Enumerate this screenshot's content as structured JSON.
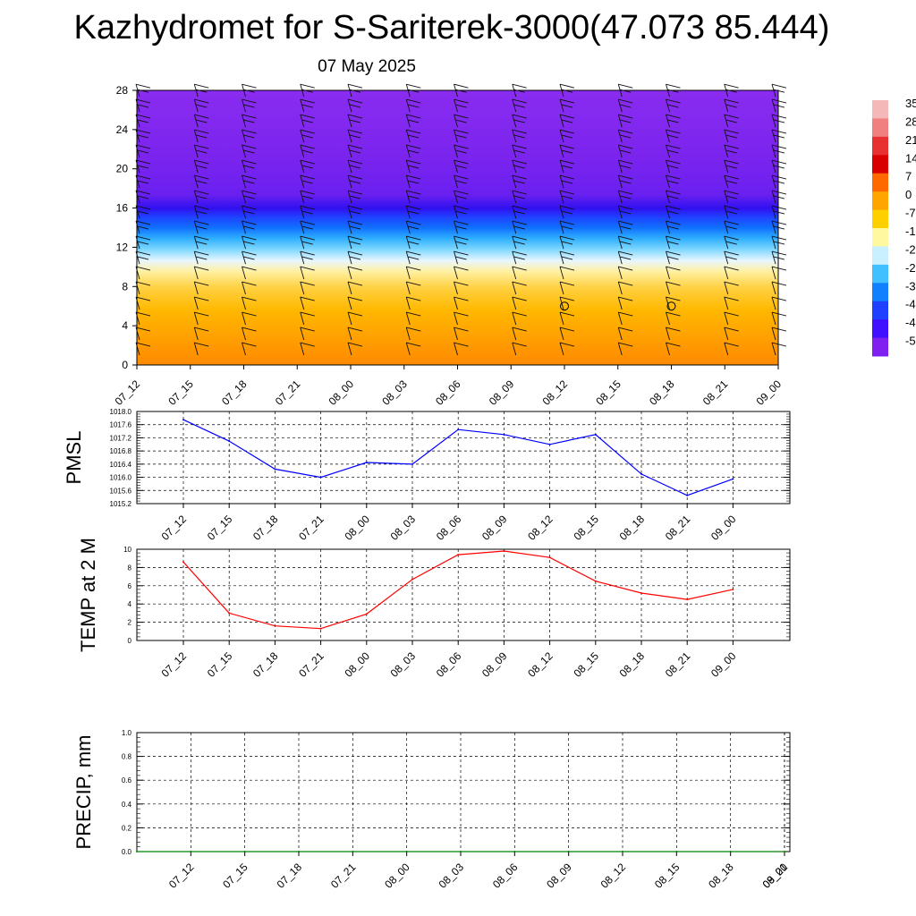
{
  "title": "Kazhydromet for S-Sariterek-3000(47.073 85.444)",
  "subtitle": "07 May 2025",
  "time_labels": [
    "07_12",
    "07_15",
    "07_18",
    "07_21",
    "08_00",
    "08_03",
    "08_06",
    "08_09",
    "08_12",
    "08_15",
    "08_18",
    "08_21",
    "09_00"
  ],
  "chart_data": [
    {
      "type": "heatmap",
      "name": "temperature-wind-cross-section",
      "xlabel": "",
      "ylabel": "",
      "x": [
        "07_12",
        "07_15",
        "07_18",
        "07_21",
        "08_00",
        "08_03",
        "08_06",
        "08_09",
        "08_12",
        "08_15",
        "08_18",
        "08_21",
        "09_00"
      ],
      "ylim": [
        0,
        28
      ],
      "yticks": [
        "0",
        "4",
        "8",
        "12",
        "16",
        "20",
        "24",
        "28"
      ],
      "colorbar_labels": [
        "35",
        "28",
        "21",
        "14",
        "7",
        "0",
        "-7",
        "-1",
        "-2",
        "-2",
        "-3",
        "-4",
        "-4",
        "-5"
      ],
      "colorbar_colors": [
        "#f4b8b8",
        "#f08080",
        "#e83030",
        "#d80000",
        "#ff6a00",
        "#ffa500",
        "#ffd000",
        "#fff8a0",
        "#c8f0ff",
        "#40c0ff",
        "#1080ff",
        "#2040ff",
        "#4010ff",
        "#8020f0"
      ],
      "wind_calm_markers": [
        {
          "x": "08_12",
          "y": 6
        },
        {
          "x": "08_18",
          "y": 6
        }
      ]
    },
    {
      "type": "line",
      "name": "PMSL",
      "ylabel": "PMSL",
      "x": [
        "07_12",
        "07_15",
        "07_18",
        "07_21",
        "08_00",
        "08_03",
        "08_06",
        "08_09",
        "08_12",
        "08_15",
        "08_18",
        "08_21",
        "09_00"
      ],
      "series": [
        {
          "values": [
            1017.75,
            1017.1,
            1016.25,
            1016.0,
            1016.45,
            1016.4,
            1017.45,
            1017.3,
            1017.0,
            1017.3,
            1016.1,
            1015.45,
            1015.95
          ],
          "color": "#0000ff"
        }
      ],
      "ylim": [
        1015.2,
        1018.0
      ],
      "yticks": [
        "1015.2",
        "1015.6",
        "1016.0",
        "1016.4",
        "1016.8",
        "1017.2",
        "1017.6",
        "1018.0"
      ],
      "grid": true
    },
    {
      "type": "line",
      "name": "TEMP at 2 M",
      "ylabel": "TEMP at 2 M",
      "x": [
        "07_12",
        "07_15",
        "07_18",
        "07_21",
        "08_00",
        "08_03",
        "08_06",
        "08_09",
        "08_12",
        "08_15",
        "08_18",
        "08_21",
        "09_00"
      ],
      "series": [
        {
          "values": [
            8.6,
            3.0,
            1.6,
            1.3,
            2.9,
            6.7,
            9.4,
            9.8,
            9.1,
            6.5,
            5.2,
            4.5,
            5.6
          ],
          "color": "#ff0000"
        }
      ],
      "ylim": [
        0,
        10
      ],
      "yticks": [
        "0",
        "2",
        "4",
        "6",
        "8",
        "10"
      ],
      "grid": true
    },
    {
      "type": "line",
      "name": "PRECIP, mm",
      "ylabel": "PRECIP, mm",
      "x": [
        "07_12",
        "07_15",
        "07_18",
        "07_21",
        "08_00",
        "08_03",
        "08_06",
        "08_09",
        "08_12",
        "08_15",
        "08_18",
        "08_21",
        "09_00"
      ],
      "series": [
        {
          "values": [
            0,
            0,
            0,
            0,
            0,
            0,
            0,
            0,
            0,
            0,
            0,
            0,
            0
          ],
          "color": "#008000"
        }
      ],
      "ylim": [
        0,
        1.0
      ],
      "yticks": [
        "0.0",
        "0.2",
        "0.4",
        "0.6",
        "0.8",
        "1.0"
      ],
      "grid": true
    }
  ]
}
